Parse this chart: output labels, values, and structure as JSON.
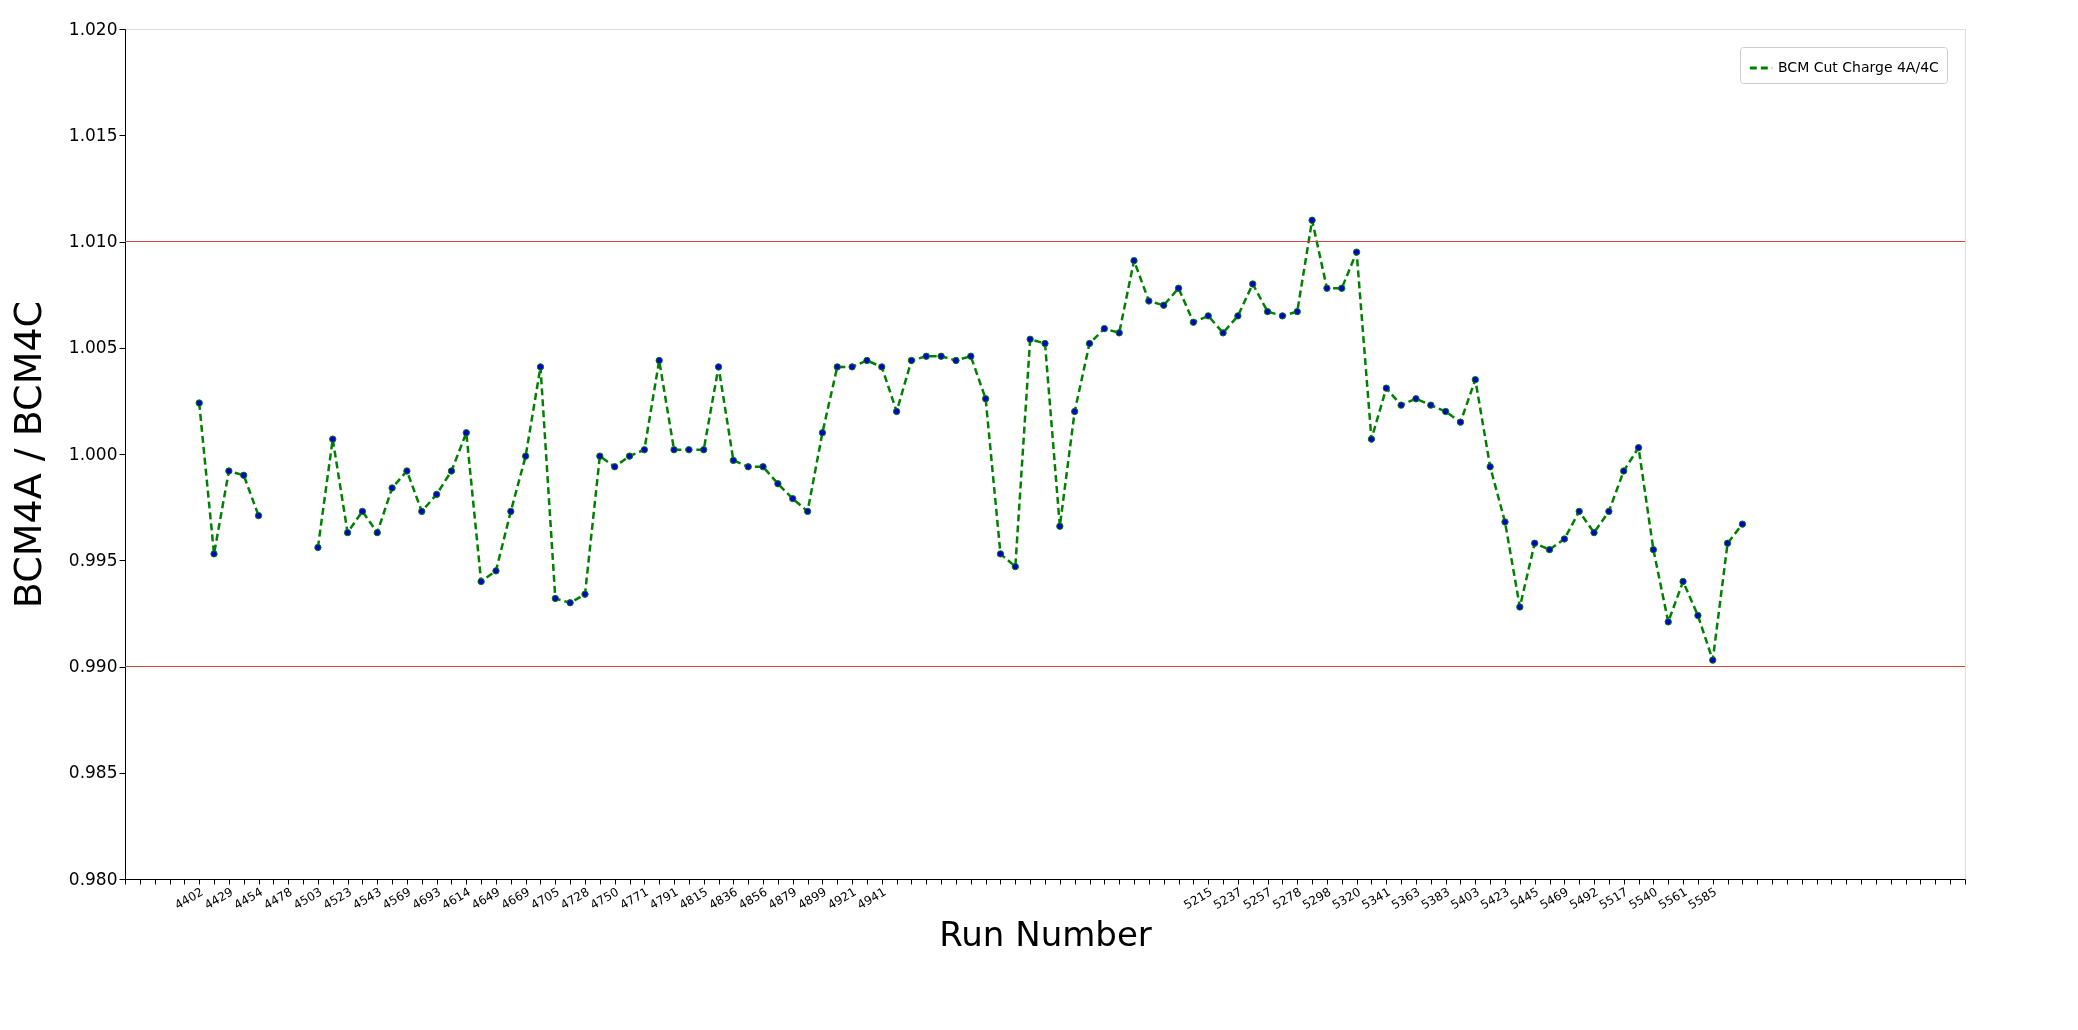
{
  "chart_data": {
    "type": "line",
    "xlabel": "Run Number",
    "ylabel": "BCM4A / BCM4C",
    "categories": [
      null,
      null,
      null,
      null,
      null,
      "4402",
      null,
      "4429",
      null,
      "4454",
      null,
      "4478",
      null,
      "4503",
      null,
      "4523",
      null,
      "4543",
      null,
      "4569",
      null,
      "4693",
      null,
      "4614",
      null,
      "4649",
      null,
      "4669",
      null,
      "4705",
      null,
      "4728",
      null,
      "4750",
      null,
      "4771",
      null,
      "4791",
      null,
      "4815",
      null,
      "4836",
      null,
      "4856",
      null,
      "4879",
      null,
      "4899",
      null,
      "4921",
      null,
      "4941",
      null,
      null,
      null,
      null,
      null,
      null,
      null,
      null,
      null,
      null,
      null,
      null,
      null,
      null,
      null,
      null,
      null,
      null,
      null,
      null,
      null,
      "5215",
      null,
      "5237",
      null,
      "5257",
      null,
      "5278",
      null,
      "5298",
      null,
      "5320",
      null,
      "5341",
      null,
      "5363",
      null,
      "5383",
      null,
      "5403",
      null,
      "5423",
      null,
      "5445",
      null,
      "5469",
      null,
      "5492",
      null,
      "5517",
      null,
      "5540",
      null,
      "5561",
      null,
      "5585",
      null,
      null,
      null,
      null,
      null,
      null,
      null,
      null,
      null,
      null,
      null,
      null,
      null,
      null,
      null,
      null,
      null
    ],
    "series": [
      {
        "name": "BCM Cut Charge 4A/4C",
        "color": "#008000",
        "values": [
          null,
          null,
          null,
          null,
          null,
          1.0024,
          0.9953,
          0.9992,
          0.999,
          0.9971,
          null,
          null,
          null,
          0.9956,
          1.0007,
          0.9963,
          0.9973,
          0.9963,
          0.9984,
          0.9992,
          0.9973,
          0.9981,
          0.9992,
          1.001,
          0.994,
          0.9945,
          0.9973,
          0.9999,
          1.0041,
          0.9932,
          0.993,
          0.9934,
          0.9999,
          0.9994,
          0.9999,
          1.0002,
          1.0044,
          1.0002,
          1.0002,
          1.0002,
          1.0041,
          0.9997,
          0.9994,
          0.9994,
          0.9986,
          0.9979,
          0.9973,
          1.001,
          1.0041,
          1.0041,
          1.0044,
          1.0041,
          1.002,
          1.0044,
          1.0046,
          1.0046,
          1.0044,
          1.0046,
          1.0026,
          0.9953,
          0.9947,
          1.0054,
          1.0052,
          0.9966,
          1.002,
          1.0052,
          1.0059,
          1.0057,
          1.0091,
          1.0072,
          1.007,
          1.0078,
          1.0062,
          1.0065,
          1.0057,
          1.0065,
          1.008,
          1.0067,
          1.0065,
          1.0067,
          1.011,
          1.0078,
          1.0078,
          1.0095,
          1.0007,
          1.0031,
          1.0023,
          1.0026,
          1.0023,
          1.002,
          1.0015,
          1.0035,
          0.9994,
          0.9968,
          0.9928,
          0.9958,
          0.9955,
          0.996,
          0.9973,
          0.9963,
          0.9973,
          0.9992,
          1.0003,
          0.9955,
          0.9921,
          0.994,
          0.9924,
          0.9903,
          0.9958,
          0.9967,
          null,
          null,
          null,
          null,
          null,
          null,
          null,
          null,
          null,
          null,
          null,
          null,
          null,
          null,
          null
        ]
      }
    ],
    "ylim": [
      0.98,
      1.02
    ],
    "yticks": [
      {
        "value": 0.98,
        "label": "0.980"
      },
      {
        "value": 0.985,
        "label": "0.985"
      },
      {
        "value": 0.99,
        "label": "0.990"
      },
      {
        "value": 0.995,
        "label": "0.995"
      },
      {
        "value": 1.0,
        "label": "1.000"
      },
      {
        "value": 1.005,
        "label": "1.005"
      },
      {
        "value": 1.01,
        "label": "1.010"
      },
      {
        "value": 1.015,
        "label": "1.015"
      },
      {
        "value": 1.02,
        "label": "1.020"
      }
    ],
    "ref_lines": [
      {
        "axis": "y",
        "value": 1.01,
        "color": "#d04040"
      },
      {
        "axis": "y",
        "value": 0.99,
        "color": "#d04040"
      }
    ],
    "grid": false,
    "legend": "top right",
    "marker": "circle",
    "line_style": "dashed"
  }
}
